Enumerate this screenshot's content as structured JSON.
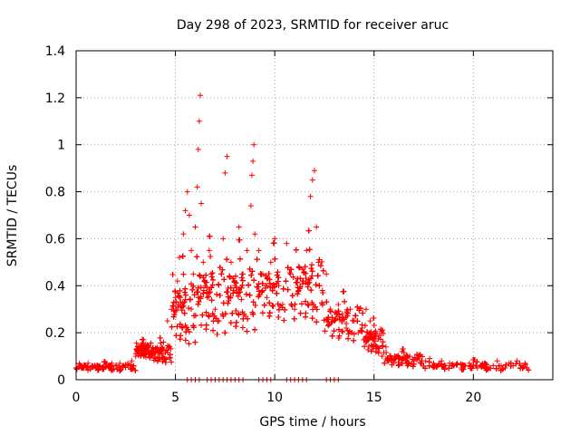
{
  "chart_data": {
    "type": "scatter",
    "title": "Day 298 of 2023, SRMTID for receiver aruc",
    "xlabel": "GPS time / hours",
    "ylabel": "SRMTID / TECUs",
    "xlim": [
      0,
      24
    ],
    "ylim": [
      0,
      1.4
    ],
    "x_ticks": [
      0,
      5,
      10,
      15,
      20
    ],
    "x_tick_labels": [
      "0",
      "5",
      "10",
      "15",
      "20"
    ],
    "y_ticks": [
      0,
      0.2,
      0.4,
      0.6,
      0.8,
      1.0,
      1.2,
      1.4
    ],
    "y_tick_labels": [
      "0",
      "0.2",
      "0.4",
      "0.6",
      "0.8",
      "1",
      "1.2",
      "1.4"
    ],
    "grid": true,
    "marker": "+",
    "marker_color": "#ff0000",
    "series": [
      {
        "name": "SRMTID",
        "x": [
          0.0,
          0.2,
          0.4,
          0.6,
          0.8,
          1.0,
          1.2,
          1.4,
          1.6,
          1.8,
          2.0,
          2.2,
          2.4,
          2.6,
          2.8,
          3.0,
          3.1,
          3.2,
          3.3,
          3.4,
          3.5,
          3.6,
          3.8,
          4.0,
          4.2,
          4.4,
          4.6,
          4.8,
          5.0,
          5.1,
          5.2,
          5.4,
          5.5,
          5.6,
          5.7,
          5.8,
          5.9,
          6.0,
          6.1,
          6.15,
          6.2,
          6.25,
          6.3,
          6.4,
          6.5,
          6.6,
          6.7,
          6.8,
          7.0,
          7.2,
          7.4,
          7.5,
          7.6,
          7.8,
          8.0,
          8.2,
          8.4,
          8.6,
          8.8,
          8.85,
          8.9,
          8.95,
          9.0,
          9.2,
          9.4,
          9.6,
          9.8,
          10.0,
          10.2,
          10.4,
          10.6,
          10.8,
          11.0,
          11.2,
          11.4,
          11.6,
          11.8,
          11.9,
          12.0,
          12.1,
          12.2,
          12.4,
          12.6,
          12.8,
          13.0,
          13.2,
          13.4,
          13.6,
          13.8,
          14.0,
          14.2,
          14.4,
          14.6,
          14.8,
          15.0,
          15.2,
          15.4,
          15.6,
          15.8,
          16.0,
          16.2,
          16.4,
          16.6,
          16.8,
          17.0,
          17.2,
          17.4,
          17.6,
          17.8,
          18.0,
          18.2,
          18.4,
          18.6,
          18.8,
          19.0,
          19.2,
          19.4,
          19.6,
          19.8,
          20.0,
          20.2,
          20.4,
          20.6,
          20.8,
          21.0,
          21.2,
          21.4,
          21.6,
          21.8,
          22.0,
          22.2,
          22.4,
          22.6,
          22.7
        ],
        "y": [
          0.05,
          0.06,
          0.05,
          0.07,
          0.06,
          0.05,
          0.06,
          0.05,
          0.06,
          0.07,
          0.06,
          0.07,
          0.06,
          0.07,
          0.08,
          0.1,
          0.12,
          0.14,
          0.15,
          0.17,
          0.15,
          0.12,
          0.1,
          0.09,
          0.12,
          0.16,
          0.25,
          0.3,
          0.35,
          0.42,
          0.52,
          0.62,
          0.72,
          0.8,
          0.7,
          0.55,
          0.45,
          0.65,
          0.82,
          0.98,
          1.1,
          1.21,
          0.75,
          0.5,
          0.4,
          0.35,
          0.55,
          0.45,
          0.3,
          0.25,
          0.6,
          0.88,
          0.95,
          0.5,
          0.4,
          0.65,
          0.45,
          0.55,
          0.74,
          0.87,
          0.93,
          1.0,
          0.62,
          0.55,
          0.45,
          0.35,
          0.5,
          0.6,
          0.4,
          0.32,
          0.58,
          0.45,
          0.3,
          0.38,
          0.42,
          0.55,
          0.78,
          0.85,
          0.89,
          0.65,
          0.5,
          0.38,
          0.45,
          0.3,
          0.25,
          0.32,
          0.28,
          0.22,
          0.3,
          0.25,
          0.2,
          0.22,
          0.3,
          0.25,
          0.15,
          0.12,
          0.1,
          0.14,
          0.09,
          0.08,
          0.1,
          0.12,
          0.09,
          0.1,
          0.08,
          0.09,
          0.07,
          0.08,
          0.09,
          0.07,
          0.06,
          0.08,
          0.06,
          0.07,
          0.06,
          0.07,
          0.05,
          0.06,
          0.07,
          0.06,
          0.05,
          0.06,
          0.07,
          0.05,
          0.06,
          0.08,
          0.06,
          0.05,
          0.07,
          0.06,
          0.08,
          0.06,
          0.07,
          0.05
        ]
      }
    ],
    "density_segments": [
      {
        "from": 0.0,
        "to": 3.0,
        "base": 0.055,
        "spread": 0.025,
        "count": 320
      },
      {
        "from": 3.0,
        "to": 3.7,
        "base": 0.13,
        "spread": 0.05,
        "count": 90
      },
      {
        "from": 3.7,
        "to": 4.8,
        "base": 0.12,
        "spread": 0.07,
        "count": 130
      },
      {
        "from": 4.8,
        "to": 6.0,
        "base": 0.32,
        "spread": 0.25,
        "count": 220
      },
      {
        "from": 6.0,
        "to": 7.5,
        "base": 0.38,
        "spread": 0.28,
        "count": 260
      },
      {
        "from": 7.5,
        "to": 9.0,
        "base": 0.38,
        "spread": 0.26,
        "count": 260
      },
      {
        "from": 9.0,
        "to": 11.0,
        "base": 0.4,
        "spread": 0.22,
        "count": 300
      },
      {
        "from": 11.0,
        "to": 12.5,
        "base": 0.42,
        "spread": 0.26,
        "count": 220
      },
      {
        "from": 12.5,
        "to": 14.5,
        "base": 0.26,
        "spread": 0.14,
        "count": 260
      },
      {
        "from": 14.5,
        "to": 15.5,
        "base": 0.18,
        "spread": 0.1,
        "count": 120
      },
      {
        "from": 15.5,
        "to": 17.5,
        "base": 0.09,
        "spread": 0.05,
        "count": 220
      },
      {
        "from": 17.5,
        "to": 22.8,
        "base": 0.06,
        "spread": 0.03,
        "count": 520
      }
    ],
    "zero_markers_x": [
      5.6,
      5.8,
      6.0,
      6.2,
      6.6,
      6.8,
      7.0,
      7.2,
      7.4,
      7.6,
      7.8,
      8.0,
      8.2,
      8.4,
      9.2,
      9.4,
      9.6,
      9.8,
      10.6,
      10.8,
      11.0,
      11.2,
      11.4,
      11.6,
      12.6,
      12.8,
      13.0,
      13.2
    ]
  }
}
